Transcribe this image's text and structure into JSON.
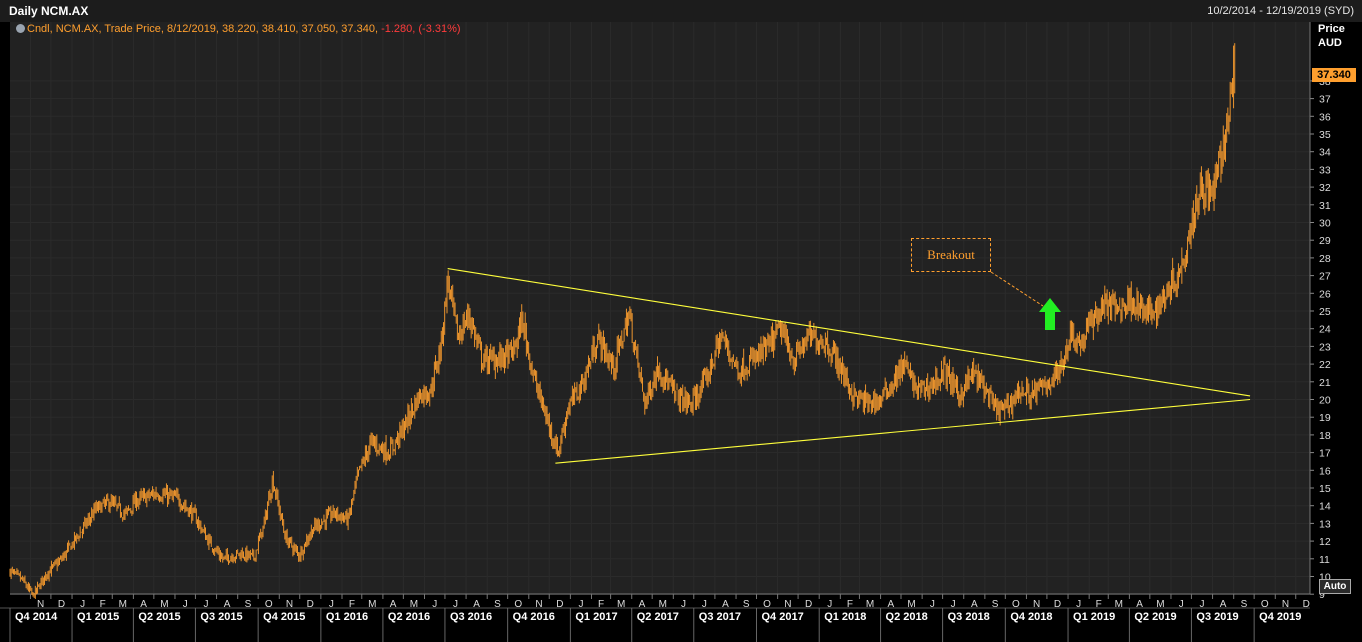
{
  "header": {
    "title": "Daily NCM.AX",
    "date_range": "10/2/2014 - 12/19/2019 (SYD)"
  },
  "legend": {
    "prefix": "Cndl, NCM.AX, Trade Price, 8/12/2019, 38.220, 38.410, 37.050, 37.340,",
    "change": "-1.280, (-3.31%)"
  },
  "axis": {
    "price_label": "Price",
    "currency": "AUD",
    "last_value": "37.340",
    "auto_label": "Auto"
  },
  "annotation": {
    "text": "Breakout"
  },
  "colors": {
    "background": "#000000",
    "grid": "#2b2b2b",
    "candles": "#ff9f2e",
    "trendline": "#ffff3c",
    "arrow": "#22ee22",
    "negative": "#ff3b3b"
  },
  "chart_data": {
    "type": "candlestick",
    "ylim": [
      8,
      40
    ],
    "y_ticks": [
      9,
      10,
      11,
      12,
      13,
      14,
      15,
      16,
      17,
      18,
      19,
      20,
      21,
      22,
      23,
      24,
      25,
      26,
      27,
      28,
      29,
      30,
      31,
      32,
      33,
      34,
      35,
      36,
      37,
      38
    ],
    "month_labels": [
      "N",
      "D",
      "J",
      "F",
      "M",
      "A",
      "M",
      "J",
      "J",
      "A",
      "S",
      "O",
      "N",
      "D",
      "J",
      "F",
      "M",
      "A",
      "M",
      "J",
      "J",
      "A",
      "S",
      "O",
      "N",
      "D",
      "J",
      "F",
      "M",
      "A",
      "M",
      "J",
      "J",
      "A",
      "S",
      "O",
      "N",
      "D",
      "J",
      "F",
      "M",
      "A",
      "M",
      "J",
      "J",
      "A",
      "S",
      "O",
      "N",
      "D",
      "J",
      "F",
      "M",
      "A",
      "M",
      "J",
      "J",
      "A",
      "S",
      "O",
      "N",
      "D"
    ],
    "quarter_labels": [
      "Q4 2014",
      "Q1 2015",
      "Q2 2015",
      "Q3 2015",
      "Q4 2015",
      "Q1 2016",
      "Q2 2016",
      "Q3 2016",
      "Q4 2016",
      "Q1 2017",
      "Q2 2017",
      "Q3 2017",
      "Q4 2017",
      "Q1 2018",
      "Q2 2018",
      "Q3 2018",
      "Q4 2018",
      "Q1 2019",
      "Q2 2019",
      "Q3 2019",
      "Q4 2019"
    ],
    "price_path": [
      [
        "2014-10-02",
        10.3
      ],
      [
        "2014-10-20",
        9.8
      ],
      [
        "2014-11-05",
        8.9
      ],
      [
        "2014-11-25",
        10.2
      ],
      [
        "2014-12-15",
        10.9
      ],
      [
        "2015-01-15",
        12.6
      ],
      [
        "2015-02-05",
        13.8
      ],
      [
        "2015-02-25",
        14.2
      ],
      [
        "2015-03-20",
        13.5
      ],
      [
        "2015-04-05",
        14.3
      ],
      [
        "2015-05-05",
        14.7
      ],
      [
        "2015-06-05",
        14.4
      ],
      [
        "2015-06-30",
        13.4
      ],
      [
        "2015-07-20",
        12.0
      ],
      [
        "2015-08-10",
        11.0
      ],
      [
        "2015-09-05",
        11.3
      ],
      [
        "2015-09-25",
        11.1
      ],
      [
        "2015-10-10",
        13.0
      ],
      [
        "2015-10-22",
        15.5
      ],
      [
        "2015-11-10",
        12.2
      ],
      [
        "2015-11-30",
        11.2
      ],
      [
        "2015-12-20",
        12.7
      ],
      [
        "2016-01-20",
        13.6
      ],
      [
        "2016-02-10",
        13.2
      ],
      [
        "2016-02-25",
        15.8
      ],
      [
        "2016-03-15",
        17.6
      ],
      [
        "2016-04-10",
        17.0
      ],
      [
        "2016-04-30",
        18.3
      ],
      [
        "2016-05-25",
        20.3
      ],
      [
        "2016-06-10",
        20.5
      ],
      [
        "2016-06-25",
        23.0
      ],
      [
        "2016-07-05",
        26.8
      ],
      [
        "2016-07-20",
        23.5
      ],
      [
        "2016-08-05",
        24.8
      ],
      [
        "2016-08-25",
        22.2
      ],
      [
        "2016-09-20",
        22.3
      ],
      [
        "2016-10-10",
        22.7
      ],
      [
        "2016-10-22",
        24.5
      ],
      [
        "2016-11-10",
        21.0
      ],
      [
        "2016-12-01",
        18.5
      ],
      [
        "2016-12-14",
        17.0
      ],
      [
        "2016-12-28",
        19.5
      ],
      [
        "2017-01-20",
        21.0
      ],
      [
        "2017-02-10",
        23.5
      ],
      [
        "2017-03-05",
        21.8
      ],
      [
        "2017-03-28",
        24.8
      ],
      [
        "2017-04-20",
        19.8
      ],
      [
        "2017-05-10",
        21.8
      ],
      [
        "2017-06-05",
        20.2
      ],
      [
        "2017-06-28",
        19.7
      ],
      [
        "2017-07-20",
        21.2
      ],
      [
        "2017-08-10",
        23.6
      ],
      [
        "2017-09-05",
        21.6
      ],
      [
        "2017-09-25",
        22.2
      ],
      [
        "2017-10-20",
        23.0
      ],
      [
        "2017-11-05",
        24.0
      ],
      [
        "2017-11-25",
        22.2
      ],
      [
        "2017-12-15",
        23.5
      ],
      [
        "2018-01-10",
        23.3
      ],
      [
        "2018-01-30",
        22.0
      ],
      [
        "2018-02-20",
        20.2
      ],
      [
        "2018-03-10",
        19.8
      ],
      [
        "2018-03-30",
        19.9
      ],
      [
        "2018-04-20",
        21.0
      ],
      [
        "2018-05-05",
        22.0
      ],
      [
        "2018-05-25",
        20.5
      ],
      [
        "2018-06-15",
        20.8
      ],
      [
        "2018-07-05",
        21.6
      ],
      [
        "2018-07-25",
        20.2
      ],
      [
        "2018-08-15",
        21.5
      ],
      [
        "2018-09-01",
        20.6
      ],
      [
        "2018-09-15",
        19.5
      ],
      [
        "2018-10-01",
        19.4
      ],
      [
        "2018-10-20",
        20.5
      ],
      [
        "2018-11-10",
        20.3
      ],
      [
        "2018-12-01",
        20.9
      ],
      [
        "2018-12-20",
        21.6
      ],
      [
        "2019-01-05",
        23.8
      ],
      [
        "2019-01-20",
        23.1
      ],
      [
        "2019-02-05",
        24.5
      ],
      [
        "2019-02-25",
        25.4
      ],
      [
        "2019-03-15",
        25.1
      ],
      [
        "2019-04-05",
        25.7
      ],
      [
        "2019-04-25",
        24.8
      ],
      [
        "2019-05-15",
        25.3
      ],
      [
        "2019-06-01",
        26.6
      ],
      [
        "2019-06-15",
        27.3
      ],
      [
        "2019-07-01",
        30.0
      ],
      [
        "2019-07-15",
        32.2
      ],
      [
        "2019-07-30",
        31.5
      ],
      [
        "2019-08-12",
        33.2
      ],
      [
        "2019-08-22",
        35.4
      ],
      [
        "2019-09-01",
        38.5
      ],
      [
        "2019-09-04",
        37.3
      ]
    ],
    "trendlines": [
      {
        "from": [
          "2016-07-05",
          27.4
        ],
        "to": [
          "2019-09-25",
          20.2
        ]
      },
      {
        "from": [
          "2016-12-10",
          16.4
        ],
        "to": [
          "2019-09-25",
          20.0
        ]
      }
    ]
  }
}
